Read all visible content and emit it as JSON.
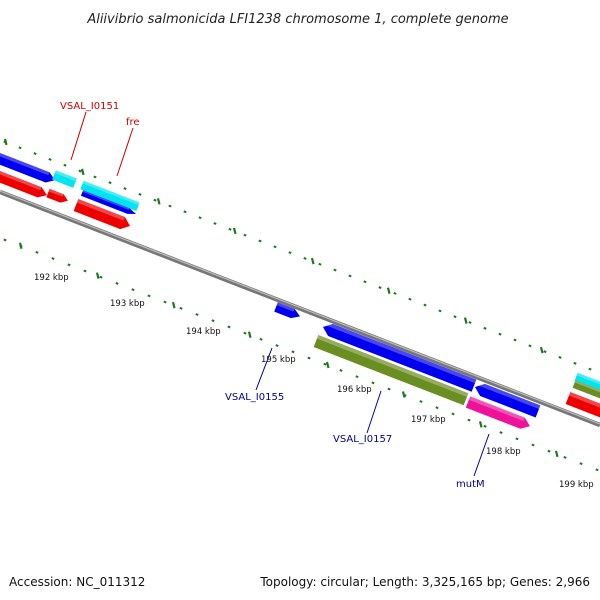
{
  "title": "Aliivibrio salmonicida LFI1238 chromosome 1, complete genome",
  "footer": {
    "accession": "Accession: NC_011312",
    "summary": "Topology: circular; Length: 3,325,165 bp; Genes: 2,966"
  },
  "ticks": [
    "192 kbp",
    "193 kbp",
    "194 kbp",
    "195 kbp",
    "196 kbp",
    "197 kbp",
    "198 kbp",
    "199 kbp"
  ],
  "gene_labels": [
    {
      "id": "VSAL_I0151",
      "text": "VSAL_I0151",
      "color": "#cc0000"
    },
    {
      "id": "fre",
      "text": "fre",
      "color": "#cc0000"
    },
    {
      "id": "VSAL_I0155",
      "text": "VSAL_I0155",
      "color": "#000099"
    },
    {
      "id": "VSAL_I0157",
      "text": "VSAL_I0157",
      "color": "#000099"
    },
    {
      "id": "mutM",
      "text": "mutM",
      "color": "#000099"
    }
  ],
  "colors": {
    "blue": "#0000ee",
    "red": "#ee0000",
    "cyan": "#00e5f0",
    "olive": "#6b8e23",
    "magenta": "#ee1199",
    "tick_green": "#1a7a1a",
    "backbone": "#8c8c8c"
  }
}
